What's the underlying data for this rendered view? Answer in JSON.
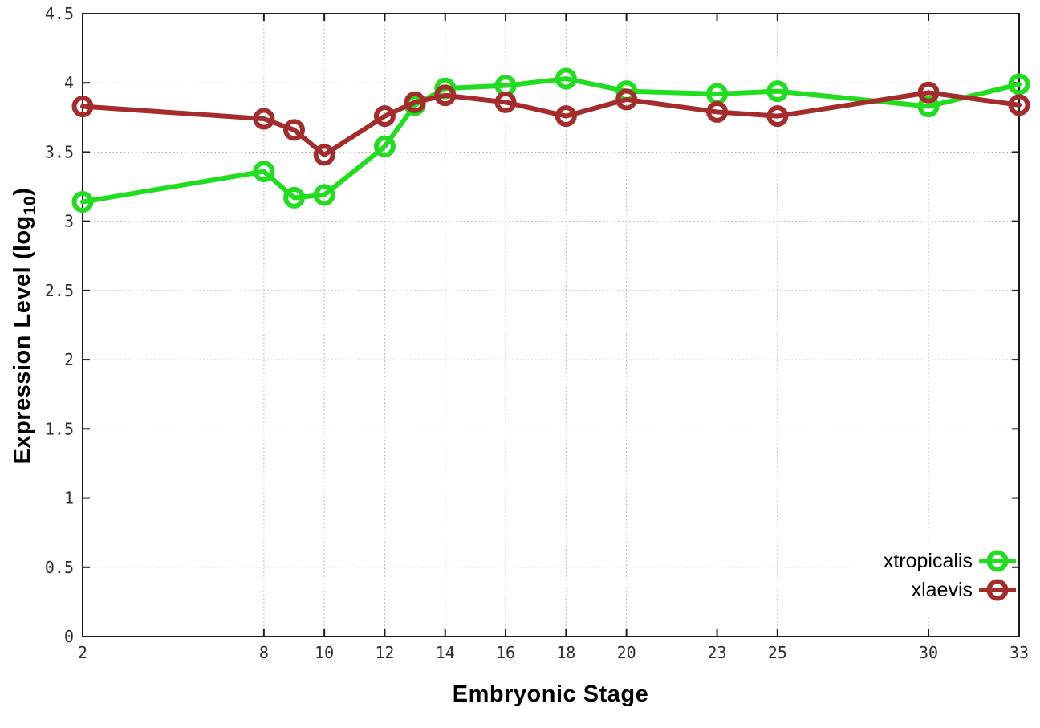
{
  "chart_data": {
    "type": "line",
    "title": "",
    "xlabel": "Embryonic Stage",
    "ylabel": {
      "prefix": "Expression Level (log",
      "sub": "10",
      "suffix": ")"
    },
    "x": [
      2,
      8,
      9,
      10,
      12,
      13,
      14,
      16,
      18,
      20,
      23,
      25,
      30,
      33
    ],
    "series": [
      {
        "name": "xtropicalis",
        "color": "#20dd20",
        "marker": "open-circle",
        "values": [
          3.14,
          3.36,
          3.17,
          3.19,
          3.54,
          3.84,
          3.96,
          3.98,
          4.03,
          3.94,
          3.92,
          3.94,
          3.83,
          3.99
        ]
      },
      {
        "name": "xlaevis",
        "color": "#a42c2c",
        "marker": "open-circle",
        "values": [
          3.83,
          3.74,
          3.66,
          3.48,
          3.76,
          3.86,
          3.91,
          3.86,
          3.76,
          3.88,
          3.79,
          3.76,
          3.93,
          3.84
        ]
      }
    ],
    "xlim": [
      2,
      33
    ],
    "ylim": [
      0,
      4.5
    ],
    "xticks": [
      2,
      8,
      10,
      12,
      14,
      16,
      18,
      20,
      23,
      25,
      30,
      33
    ],
    "yticks": [
      0,
      0.5,
      1,
      1.5,
      2,
      2.5,
      3,
      3.5,
      4,
      4.5
    ],
    "ytick_labels": [
      "0",
      "0.5",
      "1",
      "1.5",
      "2",
      "2.5",
      "3",
      "3.5",
      "4",
      "4.5"
    ],
    "grid": true,
    "grid_style": "dotted",
    "legend_position": "bottom-right",
    "colors": {
      "axis": "#1c1c1c",
      "grid": "#a8a8a8",
      "tick_text": "#2e2e2e",
      "background": "#ffffff"
    }
  }
}
